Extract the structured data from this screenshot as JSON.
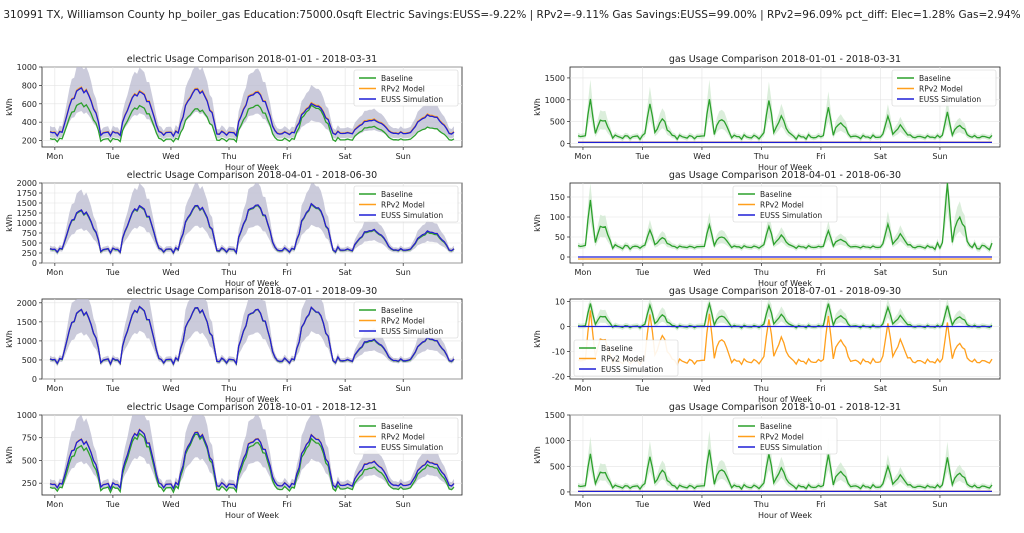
{
  "suptitle": "310991 TX, Williamson County hp_boiler_gas Education:75000.0sqft    Electric Savings:EUSS=-9.22% | RPv2=-9.11%  Gas Savings:EUSS=99.00% | RPv2=96.09%  pct_diff: Elec=1.28% Gas=2.94%",
  "colors": {
    "baseline": "#2ca02c",
    "rpv2": "#ff9f1c",
    "euss": "#1f1fd6",
    "band_elec": "#b9b9cf",
    "band_gas": "#cfe8cf"
  },
  "chart_data": [
    {
      "id": "e1",
      "type": "line",
      "title": "electric Usage Comparison 2018-01-01 - 2018-03-31",
      "xlabel": "Hour of Week",
      "ylabel": "kWh",
      "ylim": [
        130,
        1000
      ],
      "yticks": [
        200,
        400,
        600,
        800,
        1000
      ],
      "xticks": [
        "Mon",
        "Tue",
        "Wed",
        "Thu",
        "Fri",
        "Sat",
        "Sun"
      ],
      "legend_position": "upper right",
      "legend": [
        "Baseline",
        "RPv2 Model",
        "EUSS Simulation"
      ],
      "daily_peak": {
        "baseline": [
          600,
          570,
          540,
          580,
          570,
          350,
          340
        ],
        "euss": [
          760,
          720,
          750,
          720,
          590,
          420,
          470
        ],
        "rpv2": [
          770,
          730,
          760,
          730,
          600,
          430,
          480
        ]
      },
      "night_base": {
        "baseline": 210,
        "euss": 280,
        "rpv2": 285
      }
    },
    {
      "id": "g1",
      "type": "line",
      "title": "gas Usage Comparison 2018-01-01 - 2018-03-31",
      "xlabel": "Hour of Week",
      "ylabel": "kWh",
      "ylim": [
        -80,
        1750
      ],
      "yticks": [
        0,
        500,
        1000,
        1500
      ],
      "xticks": [
        "Mon",
        "Tue",
        "Wed",
        "Thu",
        "Fri",
        "Sat",
        "Sun"
      ],
      "legend_position": "upper right",
      "legend": [
        "Baseline",
        "RPv2 Model",
        "EUSS Simulation"
      ],
      "daily_peak": {
        "baseline": [
          1000,
          950,
          1010,
          1040,
          820,
          650,
          700
        ]
      },
      "night_base": {
        "baseline": 150,
        "euss": 25,
        "rpv2": 30
      }
    },
    {
      "id": "e2",
      "type": "line",
      "title": "electric Usage Comparison 2018-04-01 - 2018-06-30",
      "xlabel": "Hour of Week",
      "ylabel": "kWh",
      "ylim": [
        0,
        2000
      ],
      "yticks": [
        0,
        250,
        500,
        750,
        1000,
        1250,
        1500,
        1750,
        2000
      ],
      "xticks": [
        "Mon",
        "Tue",
        "Wed",
        "Thu",
        "Fri",
        "Sat",
        "Sun"
      ],
      "legend_position": "upper right",
      "legend": [
        "Baseline",
        "RPv2 Model",
        "EUSS Simulation"
      ],
      "daily_peak": {
        "baseline": [
          1280,
          1380,
          1400,
          1420,
          1420,
          800,
          750
        ],
        "euss": [
          1300,
          1400,
          1420,
          1440,
          1440,
          820,
          780
        ],
        "rpv2": [
          1300,
          1400,
          1420,
          1440,
          1440,
          820,
          780
        ]
      },
      "night_base": {
        "baseline": 320,
        "euss": 330,
        "rpv2": 330
      }
    },
    {
      "id": "g2",
      "type": "line",
      "title": "gas Usage Comparison 2018-04-01 - 2018-06-30",
      "xlabel": "Hour of Week",
      "ylabel": "kWh",
      "ylim": [
        -15,
        185
      ],
      "yticks": [
        0,
        50,
        100,
        150
      ],
      "xticks": [
        "Mon",
        "Tue",
        "Wed",
        "Thu",
        "Fri",
        "Sat",
        "Sun"
      ],
      "legend_position": "upper center",
      "legend": [
        "Baseline",
        "RPv2 Model",
        "EUSS Simulation"
      ],
      "daily_peak": {
        "baseline": [
          140,
          70,
          80,
          80,
          65,
          85,
          180
        ]
      },
      "night_base": {
        "baseline": 25,
        "euss": 0,
        "rpv2": -5
      }
    },
    {
      "id": "e3",
      "type": "line",
      "title": "electric Usage Comparison 2018-07-01 - 2018-09-30",
      "xlabel": "Hour of Week",
      "ylabel": "kWh",
      "ylim": [
        0,
        2100
      ],
      "yticks": [
        0,
        500,
        1000,
        1500,
        2000
      ],
      "xticks": [
        "Mon",
        "Tue",
        "Wed",
        "Thu",
        "Fri",
        "Sat",
        "Sun"
      ],
      "legend_position": "upper right",
      "legend": [
        "Baseline",
        "RPv2 Model",
        "EUSS Simulation"
      ],
      "daily_peak": {
        "baseline": [
          1780,
          1850,
          1840,
          1800,
          1820,
          1000,
          1050
        ],
        "euss": [
          1790,
          1860,
          1850,
          1810,
          1830,
          1020,
          1060
        ],
        "rpv2": [
          1790,
          1860,
          1850,
          1810,
          1830,
          1020,
          1060
        ]
      },
      "night_base": {
        "baseline": 480,
        "euss": 490,
        "rpv2": 490
      }
    },
    {
      "id": "g3",
      "type": "line",
      "title": "gas Usage Comparison 2018-07-01 - 2018-09-30",
      "xlabel": "Hour of Week",
      "ylabel": "kWh",
      "ylim": [
        -21,
        11
      ],
      "yticks": [
        -20,
        -10,
        0,
        10
      ],
      "xticks": [
        "Mon",
        "Tue",
        "Wed",
        "Thu",
        "Fri",
        "Sat",
        "Sun"
      ],
      "legend_position": "lower left",
      "legend": [
        "Baseline",
        "RPv2 Model",
        "EUSS Simulation"
      ],
      "daily_peak": {
        "baseline": [
          9,
          9,
          9,
          9,
          9,
          8,
          8
        ],
        "rpv2": [
          6,
          6,
          5,
          4,
          4,
          2,
          1
        ]
      },
      "night_base": {
        "baseline": 0,
        "euss": 0,
        "rpv2": -14
      }
    },
    {
      "id": "e4",
      "type": "line",
      "title": "electric Usage Comparison 2018-10-01 - 2018-12-31",
      "xlabel": "Hour of Week",
      "ylabel": "kWh",
      "ylim": [
        120,
        1000
      ],
      "yticks": [
        250,
        500,
        750,
        1000
      ],
      "xticks": [
        "Mon",
        "Tue",
        "Wed",
        "Thu",
        "Fri",
        "Sat",
        "Sun"
      ],
      "legend_position": "upper right",
      "legend": [
        "Baseline",
        "RPv2 Model",
        "EUSS Simulation"
      ],
      "daily_peak": {
        "baseline": [
          650,
          780,
          780,
          690,
          720,
          420,
          440
        ],
        "euss": [
          720,
          820,
          800,
          730,
          760,
          480,
          480
        ],
        "rpv2": [
          725,
          825,
          805,
          735,
          765,
          485,
          485
        ]
      },
      "night_base": {
        "baseline": 190,
        "euss": 230,
        "rpv2": 232
      }
    },
    {
      "id": "g4",
      "type": "line",
      "title": "gas Usage Comparison 2018-10-01 - 2018-12-31",
      "xlabel": "Hour of Week",
      "ylabel": "kWh",
      "ylim": [
        -60,
        1500
      ],
      "yticks": [
        0,
        500,
        1000,
        1500
      ],
      "xticks": [
        "Mon",
        "Tue",
        "Wed",
        "Thu",
        "Fri",
        "Sat",
        "Sun"
      ],
      "legend_position": "upper center",
      "legend": [
        "Baseline",
        "RPv2 Model",
        "EUSS Simulation"
      ],
      "daily_peak": {
        "baseline": [
          730,
          720,
          820,
          780,
          720,
          520,
          650
        ]
      },
      "night_base": {
        "baseline": 100,
        "euss": 10,
        "rpv2": 15
      }
    }
  ]
}
